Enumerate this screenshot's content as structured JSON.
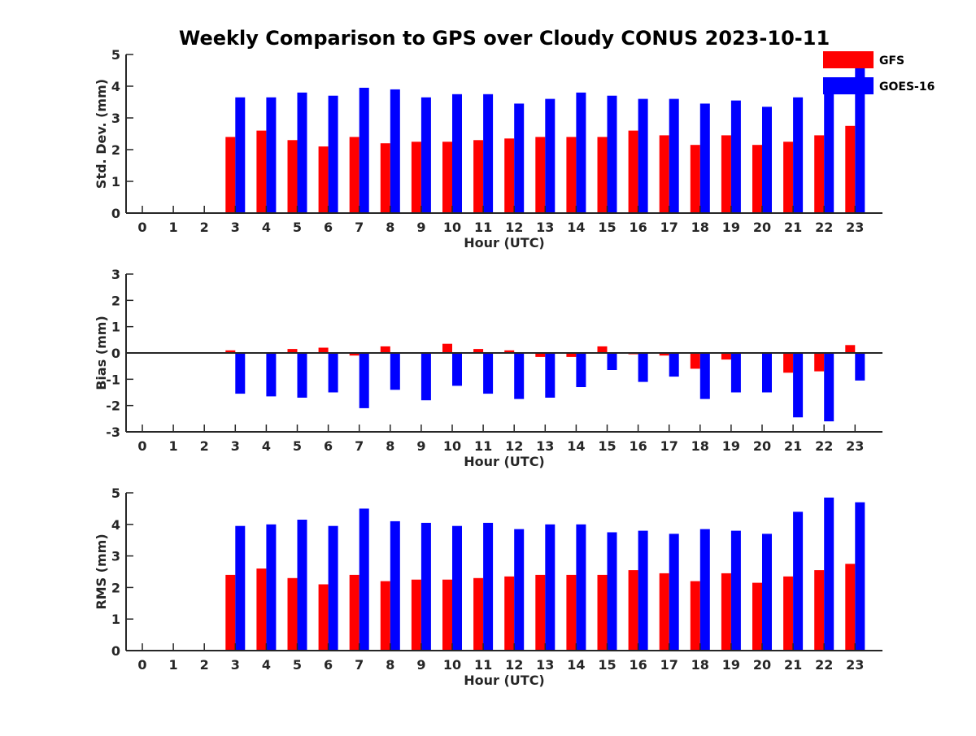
{
  "chart_data": {
    "type": "bar",
    "title": "Weekly Comparison to GPS over Cloudy CONUS 2023-10-11",
    "categories": [
      "0",
      "1",
      "2",
      "3",
      "4",
      "5",
      "6",
      "7",
      "8",
      "9",
      "10",
      "11",
      "12",
      "13",
      "14",
      "15",
      "16",
      "17",
      "18",
      "19",
      "20",
      "21",
      "22",
      "23"
    ],
    "legend": {
      "placement": "top-right",
      "entries": [
        "GFS",
        "GOES-16"
      ]
    },
    "colors": {
      "GFS": "#ff0000",
      "GOES-16": "#0000ff"
    },
    "panels": [
      {
        "xlabel": "Hour (UTC)",
        "ylabel": "Std. Dev. (mm)",
        "ylim": [
          0,
          5
        ],
        "yticks": [
          0,
          1,
          2,
          3,
          4,
          5
        ],
        "series": [
          {
            "name": "GFS",
            "values": [
              null,
              null,
              null,
              2.4,
              2.6,
              2.3,
              2.1,
              2.4,
              2.2,
              2.25,
              2.25,
              2.3,
              2.35,
              2.4,
              2.4,
              2.4,
              2.6,
              2.45,
              2.15,
              2.45,
              2.15,
              2.25,
              2.45,
              2.75
            ]
          },
          {
            "name": "GOES-16",
            "values": [
              null,
              null,
              null,
              3.65,
              3.65,
              3.8,
              3.7,
              3.95,
              3.9,
              3.65,
              3.75,
              3.75,
              3.45,
              3.6,
              3.8,
              3.7,
              3.6,
              3.6,
              3.45,
              3.55,
              3.35,
              3.65,
              4.05,
              4.6
            ]
          }
        ]
      },
      {
        "xlabel": "Hour (UTC)",
        "ylabel": "Bias (mm)",
        "ylim": [
          -3,
          3
        ],
        "yticks": [
          -3,
          -2,
          -1,
          0,
          1,
          2,
          3
        ],
        "series": [
          {
            "name": "GFS",
            "values": [
              null,
              null,
              null,
              0.1,
              0.0,
              0.15,
              0.2,
              -0.1,
              0.25,
              0.0,
              0.35,
              0.15,
              0.1,
              -0.15,
              -0.15,
              0.25,
              -0.05,
              -0.1,
              -0.6,
              -0.25,
              0.0,
              -0.75,
              -0.7,
              0.3
            ]
          },
          {
            "name": "GOES-16",
            "values": [
              null,
              null,
              null,
              -1.55,
              -1.65,
              -1.7,
              -1.5,
              -2.1,
              -1.4,
              -1.8,
              -1.25,
              -1.55,
              -1.75,
              -1.7,
              -1.3,
              -0.65,
              -1.1,
              -0.9,
              -1.75,
              -1.5,
              -1.5,
              -2.45,
              -2.6,
              -1.05
            ]
          }
        ]
      },
      {
        "xlabel": "Hour (UTC)",
        "ylabel": "RMS (mm)",
        "ylim": [
          0,
          5
        ],
        "yticks": [
          0,
          1,
          2,
          3,
          4,
          5
        ],
        "series": [
          {
            "name": "GFS",
            "values": [
              null,
              null,
              null,
              2.4,
              2.6,
              2.3,
              2.1,
              2.4,
              2.2,
              2.25,
              2.25,
              2.3,
              2.35,
              2.4,
              2.4,
              2.4,
              2.55,
              2.45,
              2.2,
              2.45,
              2.15,
              2.35,
              2.55,
              2.75
            ]
          },
          {
            "name": "GOES-16",
            "values": [
              null,
              null,
              null,
              3.95,
              4.0,
              4.15,
              3.95,
              4.5,
              4.1,
              4.05,
              3.95,
              4.05,
              3.85,
              4.0,
              4.0,
              3.75,
              3.8,
              3.7,
              3.85,
              3.8,
              3.7,
              4.4,
              4.85,
              4.7
            ]
          }
        ]
      }
    ]
  }
}
